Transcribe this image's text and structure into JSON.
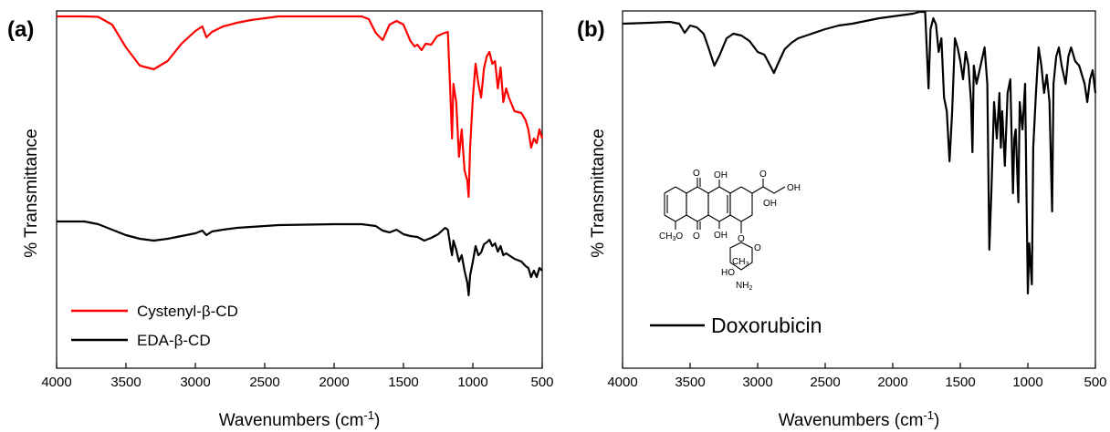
{
  "chart_data": [
    {
      "type": "line",
      "panel_label": "(a)",
      "xlabel_main": "Wavenumbers (cm",
      "xlabel_sup": "-1",
      "xlabel_close": ")",
      "ylabel": "% Transmittance",
      "xlim": [
        4000,
        500
      ],
      "x_reversed": true,
      "y_ticks_shown": false,
      "grid": false,
      "legend_position": "bottom-left",
      "x_ticks": [
        4000,
        3500,
        3000,
        2500,
        2000,
        1500,
        1000,
        500
      ],
      "series": [
        {
          "name": "Cystenyl-β-CD",
          "color": "#ff0000",
          "points": [
            [
              4000,
              6
            ],
            [
              3800,
              6
            ],
            [
              3700,
              6.5
            ],
            [
              3600,
              15
            ],
            [
              3500,
              40
            ],
            [
              3400,
              60
            ],
            [
              3300,
              64
            ],
            [
              3200,
              55
            ],
            [
              3100,
              36
            ],
            [
              3000,
              22
            ],
            [
              2950,
              17
            ],
            [
              2920,
              29
            ],
            [
              2880,
              23
            ],
            [
              2800,
              17
            ],
            [
              2700,
              13
            ],
            [
              2600,
              10
            ],
            [
              2500,
              8
            ],
            [
              2400,
              6
            ],
            [
              2000,
              6
            ],
            [
              1800,
              6
            ],
            [
              1750,
              9
            ],
            [
              1700,
              24
            ],
            [
              1650,
              32
            ],
            [
              1600,
              15
            ],
            [
              1550,
              11
            ],
            [
              1500,
              15
            ],
            [
              1450,
              33
            ],
            [
              1420,
              39
            ],
            [
              1400,
              37
            ],
            [
              1370,
              43
            ],
            [
              1340,
              36
            ],
            [
              1300,
              37
            ],
            [
              1260,
              28
            ],
            [
              1220,
              25
            ],
            [
              1180,
              23
            ],
            [
              1160,
              99
            ],
            [
              1150,
              140
            ],
            [
              1140,
              80
            ],
            [
              1120,
              100
            ],
            [
              1100,
              160
            ],
            [
              1080,
              130
            ],
            [
              1060,
              175
            ],
            [
              1040,
              186
            ],
            [
              1030,
              204
            ],
            [
              1020,
              150
            ],
            [
              1000,
              95
            ],
            [
              980,
              58
            ],
            [
              960,
              80
            ],
            [
              940,
              95
            ],
            [
              920,
              63
            ],
            [
              900,
              50
            ],
            [
              880,
              45
            ],
            [
              860,
              58
            ],
            [
              840,
              55
            ],
            [
              820,
              85
            ],
            [
              800,
              62
            ],
            [
              780,
              100
            ],
            [
              760,
              85
            ],
            [
              740,
              95
            ],
            [
              700,
              110
            ],
            [
              650,
              112
            ],
            [
              620,
              120
            ],
            [
              600,
              130
            ],
            [
              580,
              150
            ],
            [
              560,
              140
            ],
            [
              540,
              145
            ],
            [
              520,
              130
            ],
            [
              500,
              140
            ]
          ]
        },
        {
          "name": "EDA-β-CD",
          "color": "#000000",
          "points": [
            [
              4000,
              231
            ],
            [
              3800,
              231
            ],
            [
              3700,
              234
            ],
            [
              3600,
              240
            ],
            [
              3500,
              246
            ],
            [
              3400,
              250
            ],
            [
              3300,
              252
            ],
            [
              3200,
              250
            ],
            [
              3100,
              247
            ],
            [
              3000,
              244
            ],
            [
              2950,
              241
            ],
            [
              2920,
              246
            ],
            [
              2880,
              242
            ],
            [
              2800,
              240
            ],
            [
              2700,
              238
            ],
            [
              2600,
              237
            ],
            [
              2500,
              236
            ],
            [
              2400,
              235
            ],
            [
              2000,
              234
            ],
            [
              1800,
              234
            ],
            [
              1700,
              236
            ],
            [
              1650,
              241
            ],
            [
              1600,
              243
            ],
            [
              1550,
              240
            ],
            [
              1500,
              245
            ],
            [
              1450,
              247
            ],
            [
              1400,
              248
            ],
            [
              1350,
              252
            ],
            [
              1300,
              249
            ],
            [
              1250,
              245
            ],
            [
              1200,
              238
            ],
            [
              1180,
              240
            ],
            [
              1160,
              260
            ],
            [
              1150,
              268
            ],
            [
              1140,
              252
            ],
            [
              1120,
              262
            ],
            [
              1100,
              275
            ],
            [
              1080,
              268
            ],
            [
              1060,
              285
            ],
            [
              1040,
              298
            ],
            [
              1030,
              312
            ],
            [
              1020,
              290
            ],
            [
              1000,
              275
            ],
            [
              980,
              258
            ],
            [
              960,
              268
            ],
            [
              940,
              265
            ],
            [
              920,
              256
            ],
            [
              900,
              254
            ],
            [
              880,
              251
            ],
            [
              860,
              258
            ],
            [
              840,
              255
            ],
            [
              820,
              264
            ],
            [
              800,
              258
            ],
            [
              780,
              268
            ],
            [
              760,
              266
            ],
            [
              740,
              268
            ],
            [
              700,
              272
            ],
            [
              650,
              275
            ],
            [
              620,
              280
            ],
            [
              600,
              282
            ],
            [
              580,
              292
            ],
            [
              560,
              285
            ],
            [
              540,
              292
            ],
            [
              520,
              282
            ],
            [
              500,
              285
            ]
          ]
        }
      ]
    },
    {
      "type": "line",
      "panel_label": "(b)",
      "xlabel_main": "Wavenumbers (cm",
      "xlabel_sup": "-1",
      "xlabel_close": ")",
      "ylabel": "% Transmittance",
      "xlim": [
        4000,
        500
      ],
      "x_reversed": true,
      "y_ticks_shown": false,
      "grid": false,
      "legend_position": "bottom-left",
      "x_ticks": [
        4000,
        3500,
        3000,
        2500,
        2000,
        1500,
        1000,
        500
      ],
      "series": [
        {
          "name": "Doxorubicin",
          "color": "#000000",
          "points": [
            [
              4000,
              14
            ],
            [
              3800,
              13
            ],
            [
              3650,
              12
            ],
            [
              3580,
              14
            ],
            [
              3540,
              24
            ],
            [
              3500,
              16
            ],
            [
              3450,
              18
            ],
            [
              3400,
              25
            ],
            [
              3360,
              42
            ],
            [
              3320,
              60
            ],
            [
              3280,
              48
            ],
            [
              3230,
              30
            ],
            [
              3180,
              25
            ],
            [
              3120,
              27
            ],
            [
              3060,
              33
            ],
            [
              3000,
              45
            ],
            [
              2950,
              48
            ],
            [
              2900,
              62
            ],
            [
              2880,
              68
            ],
            [
              2850,
              58
            ],
            [
              2800,
              42
            ],
            [
              2750,
              35
            ],
            [
              2700,
              30
            ],
            [
              2600,
              25
            ],
            [
              2500,
              20
            ],
            [
              2400,
              16
            ],
            [
              2300,
              14
            ],
            [
              2200,
              11
            ],
            [
              2100,
              8
            ],
            [
              2000,
              6
            ],
            [
              1850,
              3
            ],
            [
              1800,
              1
            ],
            [
              1760,
              1
            ],
            [
              1735,
              85
            ],
            [
              1720,
              20
            ],
            [
              1700,
              8
            ],
            [
              1680,
              15
            ],
            [
              1660,
              45
            ],
            [
              1640,
              30
            ],
            [
              1620,
              95
            ],
            [
              1600,
              110
            ],
            [
              1580,
              165
            ],
            [
              1560,
              110
            ],
            [
              1540,
              30
            ],
            [
              1520,
              40
            ],
            [
              1500,
              55
            ],
            [
              1480,
              75
            ],
            [
              1460,
              45
            ],
            [
              1440,
              60
            ],
            [
              1420,
              100
            ],
            [
              1410,
              155
            ],
            [
              1400,
              60
            ],
            [
              1380,
              80
            ],
            [
              1350,
              60
            ],
            [
              1320,
              40
            ],
            [
              1300,
              80
            ],
            [
              1285,
              262
            ],
            [
              1270,
              200
            ],
            [
              1250,
              100
            ],
            [
              1230,
              140
            ],
            [
              1210,
              90
            ],
            [
              1200,
              150
            ],
            [
              1190,
              110
            ],
            [
              1170,
              170
            ],
            [
              1150,
              90
            ],
            [
              1130,
              75
            ],
            [
              1110,
              200
            ],
            [
              1100,
              140
            ],
            [
              1090,
              130
            ],
            [
              1070,
              210
            ],
            [
              1060,
              100
            ],
            [
              1040,
              130
            ],
            [
              1020,
              80
            ],
            [
              1010,
              200
            ],
            [
              1000,
              310
            ],
            [
              990,
              255
            ],
            [
              970,
              300
            ],
            [
              960,
              150
            ],
            [
              940,
              90
            ],
            [
              920,
              40
            ],
            [
              900,
              60
            ],
            [
              880,
              90
            ],
            [
              860,
              70
            ],
            [
              840,
              100
            ],
            [
              820,
              220
            ],
            [
              810,
              80
            ],
            [
              790,
              50
            ],
            [
              770,
              40
            ],
            [
              750,
              60
            ],
            [
              720,
              80
            ],
            [
              700,
              50
            ],
            [
              680,
              40
            ],
            [
              650,
              55
            ],
            [
              620,
              60
            ],
            [
              600,
              70
            ],
            [
              580,
              80
            ],
            [
              560,
              100
            ],
            [
              540,
              75
            ],
            [
              520,
              65
            ],
            [
              500,
              90
            ]
          ]
        }
      ]
    }
  ],
  "structure": {
    "oh_top1": "OH",
    "o_ketone_top": "O",
    "o_ketone_bottom": "O",
    "oh_bottom": "OH",
    "o_side": "O",
    "oh_side_end": "OH",
    "oh_ring": "OH",
    "methoxy": "CH",
    "methoxy_sub": "3",
    "methoxy_o": "O",
    "glyco_o": "O",
    "ring_o": "O",
    "ch3_sugar": "CH",
    "ch3_sugar_sub": "3",
    "ho_sugar": "HO",
    "nh2": "NH",
    "nh2_sub": "2"
  }
}
